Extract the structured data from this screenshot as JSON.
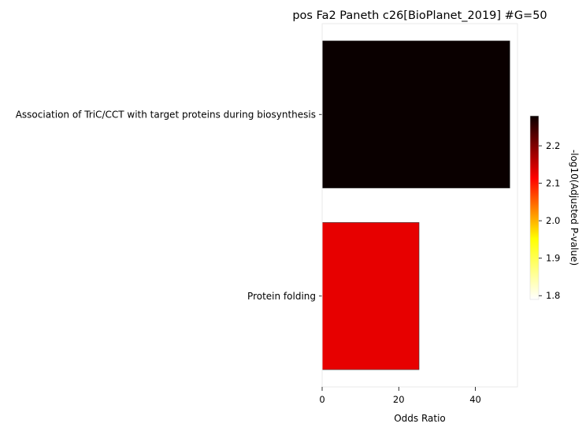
{
  "chart_data": {
    "type": "bar",
    "orientation": "horizontal",
    "title": "pos Fa2 Paneth c26[BioPlanet_2019] #G=50",
    "xlabel": "Odds Ratio",
    "ylabel": "",
    "xlim": [
      0,
      51
    ],
    "xticks": [
      0,
      20,
      40
    ],
    "grid": false,
    "categories": [
      "Association of TriC/CCT with target proteins during biosynthesis",
      "Protein folding"
    ],
    "values": [
      49,
      25.3
    ],
    "color_values": [
      2.28,
      2.13
    ],
    "colorbar": {
      "label": "-log10(Adjusted P-value)",
      "range": [
        1.79,
        2.28
      ],
      "ticks": [
        1.8,
        1.9,
        2.0,
        2.1,
        2.2
      ],
      "tick_labels": [
        "1.8",
        "1.9",
        "2.0",
        "2.1",
        "2.2"
      ],
      "colormap": "hot_r",
      "colormap_stops": [
        "#ffffff",
        "#ffff00",
        "#ff0000",
        "#0a0000"
      ]
    }
  }
}
